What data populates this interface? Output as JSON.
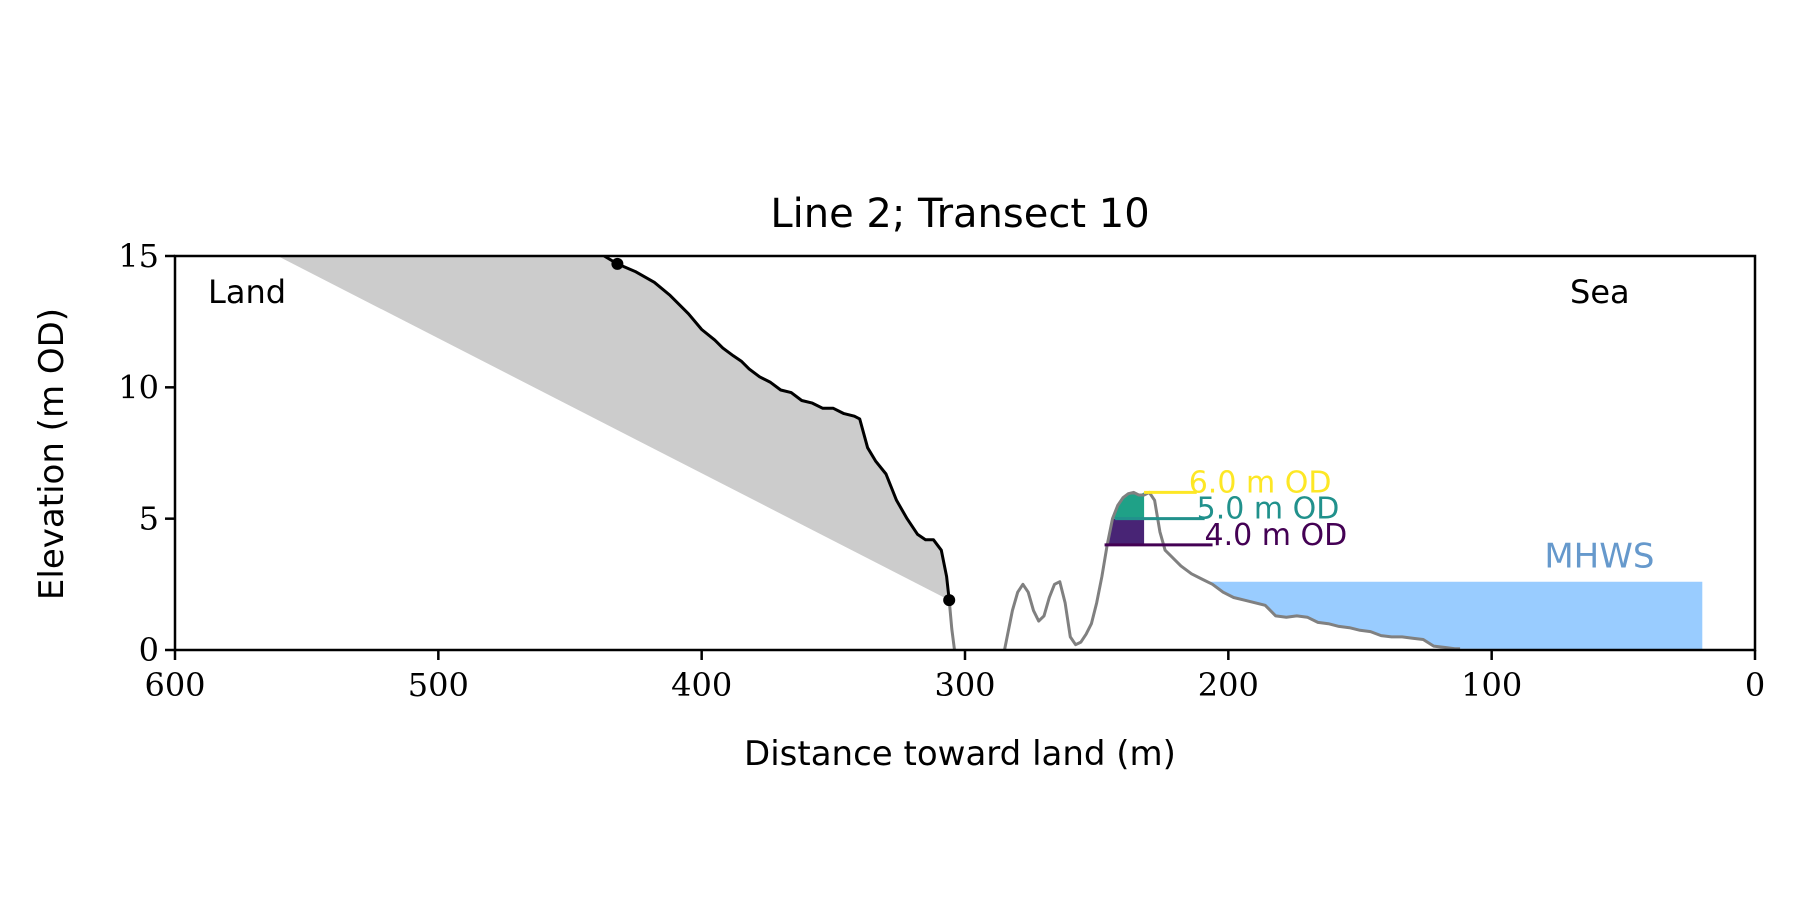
{
  "chart_data": {
    "type": "line",
    "title": "Line 2; Transect 10",
    "xlabel": "Distance toward land (m)",
    "ylabel": "Elevation (m OD)",
    "xlim": [
      600,
      0
    ],
    "ylim": [
      0,
      15
    ],
    "x_ticks": [
      600,
      500,
      400,
      300,
      200,
      100,
      0
    ],
    "y_ticks": [
      0,
      5,
      10,
      15
    ],
    "grid": false,
    "corner_labels": {
      "left": "Land",
      "right": "Sea"
    },
    "colors": {
      "cliff_profile": "#000000",
      "beach_profile": "#808080",
      "eroded_area": "#cccccc",
      "mhws_fill": "#99ccff",
      "mhws_text": "#6699cc",
      "level_6": "#fde725",
      "level_5": "#21918c",
      "level_4": "#440154",
      "fill_5": "#1fa187",
      "fill_4": "#482475"
    },
    "cliff_profile": {
      "x": [
        437,
        432,
        425,
        418,
        412,
        405,
        400,
        395,
        392,
        388,
        385,
        382,
        378,
        374,
        370,
        366,
        362,
        358,
        354,
        350,
        346,
        342,
        340,
        337,
        334,
        330,
        326,
        322,
        318,
        315,
        312,
        309,
        307,
        306
      ],
      "y": [
        15.0,
        14.7,
        14.4,
        14.0,
        13.5,
        12.8,
        12.2,
        11.8,
        11.5,
        11.2,
        11.0,
        10.7,
        10.4,
        10.2,
        9.9,
        9.8,
        9.5,
        9.4,
        9.2,
        9.2,
        9.0,
        8.9,
        8.8,
        7.7,
        7.2,
        6.7,
        5.7,
        5.0,
        4.4,
        4.2,
        4.2,
        3.8,
        2.8,
        1.9
      ]
    },
    "cliff_markers": [
      {
        "x": 432,
        "y": 14.7
      },
      {
        "x": 306,
        "y": 1.9
      }
    ],
    "eroded_area": {
      "x": [
        561,
        437,
        432,
        425,
        418,
        412,
        405,
        400,
        395,
        392,
        388,
        385,
        382,
        378,
        374,
        370,
        366,
        362,
        358,
        354,
        350,
        346,
        342,
        340,
        337,
        334,
        330,
        326,
        322,
        318,
        315,
        312,
        309,
        307,
        306
      ],
      "y": [
        15.0,
        15.0,
        14.7,
        14.4,
        14.0,
        13.5,
        12.8,
        12.2,
        11.8,
        11.5,
        11.2,
        11.0,
        10.7,
        10.4,
        10.2,
        9.9,
        9.8,
        9.5,
        9.4,
        9.2,
        9.2,
        9.0,
        8.9,
        8.8,
        7.7,
        7.2,
        6.7,
        5.7,
        5.0,
        4.4,
        4.2,
        4.2,
        3.8,
        2.8,
        1.9
      ]
    },
    "beach_profile_segments": [
      {
        "x": [
          306,
          305,
          304
        ],
        "y": [
          1.9,
          0.8,
          0.0
        ]
      },
      {
        "x": [
          285,
          282,
          280,
          278,
          276,
          274,
          272,
          270,
          268,
          266,
          264,
          262,
          260,
          258,
          256,
          254,
          252,
          250,
          248,
          246,
          244,
          242,
          240,
          238,
          236,
          234,
          232,
          230,
          228,
          226,
          224,
          222,
          218,
          214,
          210,
          206,
          202,
          198,
          194,
          190,
          186,
          182,
          178,
          174,
          170,
          166,
          162,
          158,
          154,
          150,
          146,
          142,
          138,
          134,
          130,
          126,
          122,
          118,
          114,
          112
        ],
        "y": [
          0.0,
          1.5,
          2.2,
          2.5,
          2.2,
          1.5,
          1.1,
          1.3,
          2.0,
          2.5,
          2.6,
          1.8,
          0.5,
          0.2,
          0.3,
          0.6,
          1.0,
          1.8,
          2.8,
          4.0,
          5.0,
          5.5,
          5.8,
          5.95,
          6.0,
          5.9,
          5.9,
          6.0,
          5.7,
          4.5,
          3.8,
          3.6,
          3.2,
          2.9,
          2.7,
          2.5,
          2.2,
          2.0,
          1.9,
          1.8,
          1.7,
          1.3,
          1.25,
          1.3,
          1.25,
          1.05,
          1.0,
          0.9,
          0.85,
          0.75,
          0.7,
          0.55,
          0.5,
          0.5,
          0.45,
          0.4,
          0.15,
          0.1,
          0.05,
          0.05
        ]
      }
    ],
    "water_levels": [
      {
        "label": "6.0 m OD",
        "y": 6.0,
        "x_start": 232,
        "x_end": 212,
        "color": "#fde725"
      },
      {
        "label": "5.0 m OD",
        "y": 5.0,
        "x_start": 243,
        "x_end": 209,
        "color": "#21918c"
      },
      {
        "label": "4.0 m OD",
        "y": 4.0,
        "x_start": 247,
        "x_end": 206,
        "color": "#440154"
      }
    ],
    "level_fills": [
      {
        "from": 4.0,
        "to": 5.0,
        "x_range": [
          247,
          232
        ],
        "color": "#482475"
      },
      {
        "from": 5.0,
        "to": 6.0,
        "x_range": [
          244,
          232
        ],
        "color": "#1fa187"
      }
    ],
    "mhws": {
      "label": "MHWS",
      "y": 2.6,
      "x_from": 207,
      "x_to": 20
    }
  }
}
